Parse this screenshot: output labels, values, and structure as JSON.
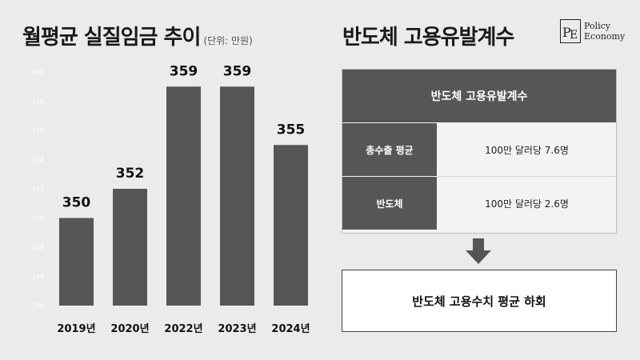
{
  "left_panel": {
    "title": "월평균 실질임금 추이",
    "unit": "(단위: 만원)"
  },
  "right_panel": {
    "title": "반도체 고용유발계수",
    "table": {
      "header": "반도체 고용유발계수",
      "rows": [
        {
          "label": "총수출 평균",
          "value": "100만 달러당 7.6명"
        },
        {
          "label": "반도체",
          "value": "100만 달러당 2.6명"
        }
      ]
    },
    "summary": "반도체 고용수치 평균 하회"
  },
  "logo": {
    "mark": "PE",
    "line1": "Policy",
    "line2": "Economy"
  },
  "chart_data": {
    "type": "bar",
    "categories": [
      "2019년",
      "2020년",
      "2022년",
      "2023년",
      "2024년"
    ],
    "values": [
      350,
      352,
      359,
      359,
      355
    ],
    "ylim": [
      344,
      360
    ],
    "ytick_values": [
      344,
      346,
      348,
      350,
      352,
      354,
      356,
      358,
      360
    ],
    "bar_color": "#575656",
    "grid": false,
    "legend": "none"
  },
  "colors": {
    "background": "#ebebeb",
    "dark_gray": "#575656",
    "table_bg": "#f4f3f2",
    "summary_bg": "#ffffff"
  },
  "icons": {
    "arrow": "down-arrow-icon"
  }
}
